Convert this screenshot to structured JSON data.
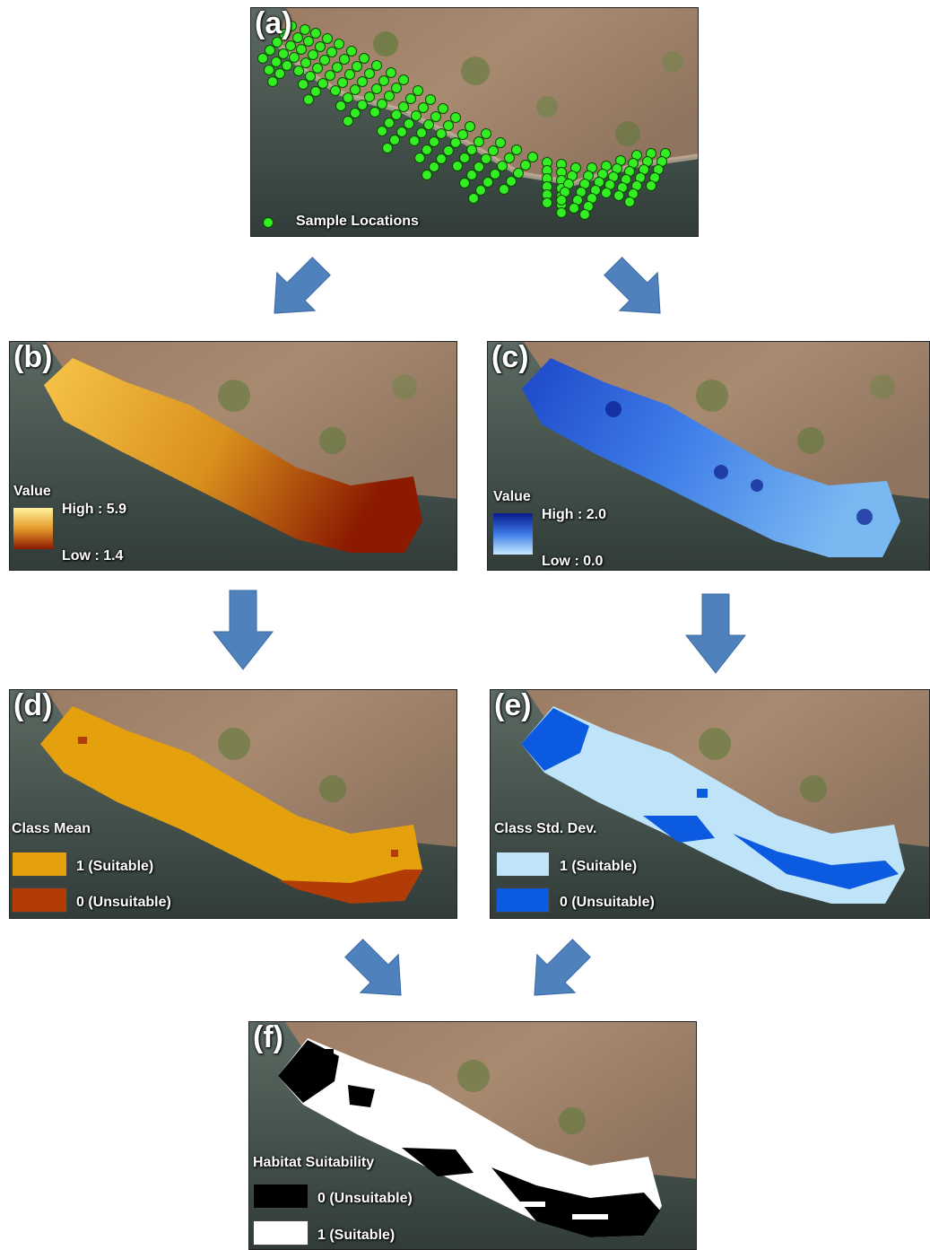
{
  "panels": {
    "a": {
      "label": "(a)",
      "legend": {
        "item": "Sample Locations"
      }
    },
    "b": {
      "label": "(b)",
      "legend": {
        "title": "Value",
        "high": "High : 5.9",
        "low": "Low : 1.4"
      }
    },
    "c": {
      "label": "(c)",
      "legend": {
        "title": "Value",
        "high": "High : 2.0",
        "low": "Low : 0.0"
      }
    },
    "d": {
      "label": "(d)",
      "legend": {
        "title": "Class Mean",
        "item1": "1 (Suitable)",
        "item0": "0 (Unsuitable)"
      }
    },
    "e": {
      "label": "(e)",
      "legend": {
        "title": "Class Std. Dev.",
        "item1": "1 (Suitable)",
        "item0": "0 (Unsuitable)"
      }
    },
    "f": {
      "label": "(f)",
      "legend": {
        "title": "Habitat Suitability",
        "item0": "0 (Unsuitable)",
        "item1": "1 (Suitable)"
      }
    }
  },
  "colors": {
    "arrow": "#4f81bd",
    "sample_point": "#33ee22",
    "mean_high": "#fff2a0",
    "mean_low": "#8b1a00",
    "sd_high": "#0a1a8c",
    "sd_low": "#c8eaff",
    "class_mean_suitable": "#e5a00e",
    "class_mean_unsuitable": "#b23c08",
    "class_sd_suitable": "#bfe4fa",
    "class_sd_unsuitable": "#0b5ae0",
    "habitat_unsuitable": "#000000",
    "habitat_suitable": "#ffffff"
  }
}
